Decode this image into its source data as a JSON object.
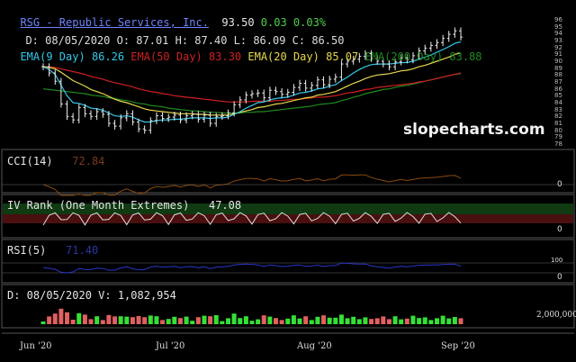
{
  "header": {
    "title": "RSG - Republic Services, Inc.",
    "price": "93.50",
    "change": "0.03 0.03%",
    "ohlc": "D: 08/05/2020 O: 87.01 H: 87.40 L: 86.09 C: 86.50"
  },
  "ema_legend": [
    {
      "label": "EMA(9 Day)",
      "value": "86.26",
      "color": "#33c8e8"
    },
    {
      "label": "EMA(50 Day)",
      "value": "83.30",
      "color": "#d02020"
    },
    {
      "label": "EMA(20 Day)",
      "value": "85.07",
      "color": "#e8d84a"
    },
    {
      "label": "EMA(200 Day)",
      "value": "83.88",
      "color": "#1f8a1f"
    }
  ],
  "watermark": "slopecharts.com",
  "price_axis_ticks": [
    "96",
    "95",
    "94",
    "93",
    "92",
    "91",
    "90",
    "89",
    "88",
    "87",
    "86",
    "85",
    "84",
    "83",
    "82",
    "81",
    "80",
    "79",
    "78"
  ],
  "panels": {
    "cci": {
      "label": "CCI(14)",
      "value": "72.84",
      "zero_tick": "0"
    },
    "iv": {
      "label": "IV Rank (One Month Extremes)",
      "value": "47.08",
      "zero_tick": "0"
    },
    "rsi": {
      "label": "RSI(5)",
      "value": "71.40",
      "tick_top": "100",
      "zero_tick": "0"
    },
    "volume": {
      "label": "D: 08/05/2020 V: 1,082,954",
      "tick": "2,000,000"
    }
  },
  "x_axis_labels": [
    "Jun '20",
    "Jul '20",
    "Aug '20",
    "Sep '20"
  ],
  "colors": {
    "background": "#000000",
    "up": "#36e036",
    "down": "#e06060",
    "panel_border": "#555555"
  },
  "chart_data": {
    "type": "line",
    "price_range": [
      78,
      96
    ],
    "close": [
      89.2,
      88.3,
      87.1,
      83.8,
      82.0,
      81.5,
      83.3,
      82.4,
      82.0,
      82.7,
      82.3,
      81.0,
      80.6,
      81.8,
      82.4,
      81.2,
      80.2,
      80.0,
      81.4,
      82.1,
      81.7,
      81.9,
      82.2,
      81.5,
      82.1,
      82.3,
      81.6,
      82.2,
      81.0,
      82.0,
      82.1,
      82.5,
      83.7,
      84.4,
      85.1,
      85.3,
      85.4,
      84.7,
      85.8,
      85.6,
      85.2,
      85.5,
      86.2,
      86.8,
      86.1,
      86.5,
      87.3,
      86.6,
      87.4,
      87.7,
      89.6,
      90.0,
      90.3,
      90.7,
      91.1,
      90.4,
      90.0,
      89.6,
      89.2,
      89.9,
      90.5,
      90.2,
      90.8,
      91.5,
      91.9,
      92.3,
      92.7,
      93.3,
      93.9,
      94.4,
      93.5
    ],
    "ema9": [
      89.2,
      88.8,
      88.1,
      86.5,
      85.0,
      84.0,
      83.9,
      83.6,
      83.2,
      83.1,
      82.9,
      82.5,
      82.1,
      82.0,
      82.1,
      81.9,
      81.5,
      81.2,
      81.2,
      81.4,
      81.5,
      81.5,
      81.6,
      81.6,
      81.7,
      81.8,
      81.8,
      81.8,
      81.7,
      81.8,
      81.8,
      81.9,
      82.3,
      82.7,
      83.2,
      83.6,
      84.0,
      84.1,
      84.4,
      84.6,
      84.7,
      84.8,
      85.1,
      85.4,
      85.5,
      85.7,
      86.0,
      86.1,
      86.4,
      86.6,
      87.2,
      87.7,
      88.3,
      88.8,
      89.2,
      89.5,
      89.6,
      89.6,
      89.6,
      89.7,
      89.8,
      89.8,
      90.0,
      90.3,
      90.6,
      90.9,
      91.3,
      91.7,
      92.1,
      92.6,
      92.8
    ],
    "ema20": [
      89.2,
      89.1,
      88.9,
      88.4,
      87.8,
      87.2,
      86.8,
      86.4,
      85.9,
      85.6,
      85.3,
      84.9,
      84.5,
      84.2,
      84.0,
      83.7,
      83.4,
      83.1,
      82.9,
      82.8,
      82.7,
      82.6,
      82.5,
      82.4,
      82.4,
      82.4,
      82.3,
      82.3,
      82.2,
      82.2,
      82.2,
      82.2,
      82.4,
      82.6,
      82.8,
      83.0,
      83.3,
      83.4,
      83.6,
      83.8,
      83.9,
      84.1,
      84.3,
      84.5,
      84.7,
      84.8,
      85.1,
      85.2,
      85.4,
      85.6,
      86.0,
      86.4,
      86.8,
      87.1,
      87.5,
      87.8,
      88.0,
      88.1,
      88.2,
      88.4,
      88.6,
      88.7,
      88.9,
      89.2,
      89.4,
      89.7,
      90.0,
      90.3,
      90.6,
      91.0,
      91.2
    ],
    "ema50": [
      89.2,
      89.2,
      89.1,
      88.9,
      88.7,
      88.5,
      88.3,
      88.1,
      87.8,
      87.6,
      87.4,
      87.1,
      86.9,
      86.7,
      86.5,
      86.3,
      86.0,
      85.8,
      85.6,
      85.5,
      85.3,
      85.2,
      85.0,
      84.9,
      84.8,
      84.7,
      84.6,
      84.5,
      84.4,
      84.3,
      84.2,
      84.1,
      84.1,
      84.1,
      84.1,
      84.2,
      84.2,
      84.2,
      84.2,
      84.3,
      84.3,
      84.4,
      84.5,
      84.5,
      84.6,
      84.7,
      84.8,
      84.8,
      84.9,
      85.0,
      85.2,
      85.4,
      85.5,
      85.7,
      85.9,
      86.0,
      86.2,
      86.3,
      86.4,
      86.5,
      86.6,
      86.7,
      86.8,
      87.0,
      87.1,
      87.3,
      87.5,
      87.7,
      87.9,
      88.1,
      88.3
    ],
    "ema200": [
      86.0,
      85.9,
      85.8,
      85.7,
      85.6,
      85.5,
      85.4,
      85.3,
      85.1,
      85.0,
      84.9,
      84.7,
      84.6,
      84.4,
      84.3,
      84.1,
      83.9,
      83.8,
      83.6,
      83.5,
      83.4,
      83.2,
      83.1,
      83.0,
      82.9,
      82.8,
      82.8,
      82.7,
      82.6,
      82.6,
      82.5,
      82.5,
      82.5,
      82.5,
      82.6,
      82.6,
      82.7,
      82.7,
      82.8,
      82.9,
      83.0,
      83.1,
      83.2,
      83.3,
      83.4,
      83.5,
      83.7,
      83.8,
      83.9,
      84.0,
      84.3,
      84.5,
      84.8,
      85.0,
      85.3,
      85.5,
      85.7,
      85.9,
      86.0,
      86.2,
      86.4,
      86.5,
      86.7,
      86.9,
      87.1,
      87.3,
      87.5,
      87.7,
      87.9,
      88.1,
      88.2
    ]
  }
}
